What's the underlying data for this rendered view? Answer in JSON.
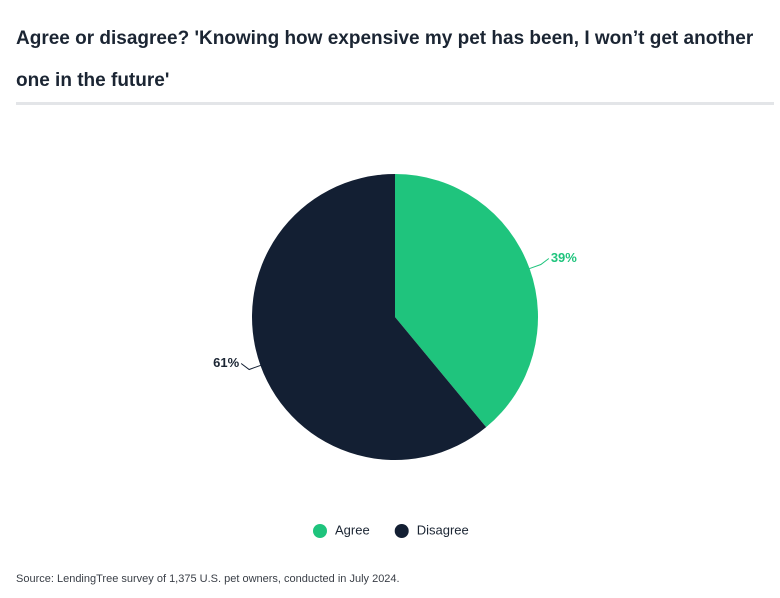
{
  "chart_data": {
    "type": "pie",
    "title": "Agree or disagree? 'Knowing how expensive my pet has been, I won’t get another one in the future'",
    "categories": [
      "Agree",
      "Disagree"
    ],
    "values": [
      39,
      61
    ],
    "value_labels": [
      "39%",
      "61%"
    ],
    "colors": [
      "#1fc47d",
      "#131f33"
    ],
    "legend": "bottom",
    "source": "Source: LendingTree survey of 1,375 U.S. pet owners, conducted in July 2024."
  }
}
